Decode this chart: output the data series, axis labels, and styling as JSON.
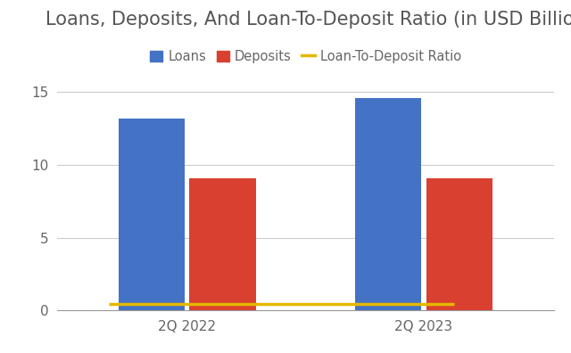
{
  "title": "Loans, Deposits, And Loan-To-Deposit Ratio (in USD Billions)",
  "categories": [
    "2Q 2022",
    "2Q 2023"
  ],
  "loans": [
    13.2,
    14.6
  ],
  "deposits": [
    9.1,
    9.1
  ],
  "loan_to_deposit_ratio": [
    0.45,
    0.5
  ],
  "bar_width": 0.28,
  "loans_color": "#4472C4",
  "deposits_color": "#D94030",
  "ratio_color": "#E6B800",
  "background_color": "#FFFFFF",
  "grid_color": "#CCCCCC",
  "title_color": "#555555",
  "tick_color": "#666666",
  "ylim": [
    0,
    16
  ],
  "yticks": [
    0,
    5,
    10,
    15
  ],
  "title_fontsize": 15,
  "legend_fontsize": 10.5,
  "tick_fontsize": 11
}
